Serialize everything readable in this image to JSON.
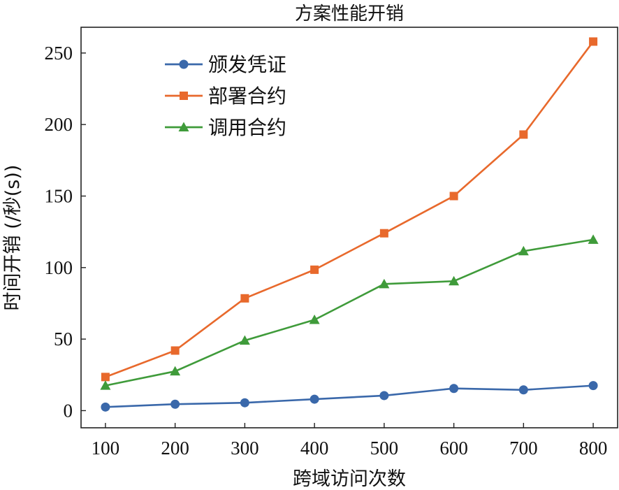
{
  "chart_data": {
    "type": "line",
    "title": "方案性能开销",
    "xlabel": "跨域访问次数",
    "ylabel": "时间开销 (/秒(s))",
    "x": [
      100,
      200,
      300,
      400,
      500,
      600,
      700,
      800
    ],
    "xlim": [
      65,
      835
    ],
    "ylim": [
      -12,
      268
    ],
    "xticks": [
      100,
      200,
      300,
      400,
      500,
      600,
      700,
      800
    ],
    "yticks": [
      0,
      50,
      100,
      150,
      200,
      250
    ],
    "grid": false,
    "legend_position": "top-left",
    "series": [
      {
        "name": "颁发凭证",
        "color": "#3a68aa",
        "marker": "circle",
        "values": [
          2.5,
          4.5,
          5.5,
          8,
          10.5,
          15.5,
          14.5,
          17.5
        ]
      },
      {
        "name": "部署合约",
        "color": "#e8692c",
        "marker": "square",
        "values": [
          23.5,
          42,
          78.5,
          98.5,
          124,
          150,
          193,
          258
        ]
      },
      {
        "name": "调用合约",
        "color": "#3f9b3a",
        "marker": "triangle",
        "values": [
          17.5,
          27.5,
          49,
          63.5,
          88.5,
          90.5,
          111.5,
          119.5
        ]
      }
    ]
  }
}
